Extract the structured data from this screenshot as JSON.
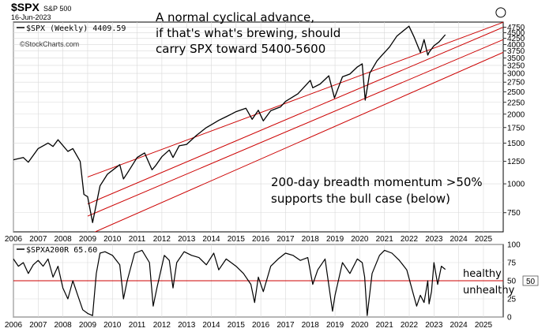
{
  "header": {
    "ticker": "$SPX",
    "name": "S&P 500",
    "date": "16-Jun-2023",
    "watermark": "©StockCharts.com"
  },
  "colors": {
    "price": "#000000",
    "channel": "#cc0000",
    "midline": "#cc0000",
    "grid": "#d9d9d9",
    "frame": "#000000"
  },
  "chart_data": [
    {
      "type": "line",
      "legend": "$SPX (Weekly) 4409.59",
      "y_scale": "log",
      "ylim": [
        620,
        5000
      ],
      "xlim": [
        2006.0,
        2025.8
      ],
      "x_ticks": [
        "2006",
        "2007",
        "2008",
        "2009",
        "2010",
        "2011",
        "2012",
        "2013",
        "2014",
        "2015",
        "2016",
        "2017",
        "2018",
        "2019",
        "2020",
        "2021",
        "2022",
        "2023",
        "2024",
        "2025"
      ],
      "y_ticks": [
        "4750",
        "4500",
        "4250",
        "4000",
        "3750",
        "3500",
        "3250",
        "3000",
        "2750",
        "2500",
        "2250",
        "2000",
        "1750",
        "1500",
        "1250",
        "1000",
        "750"
      ],
      "annotations": [
        "A normal cyclical advance,",
        "if that's what's brewing, should",
        "carry SPX toward 5400-5600",
        "200-day breadth momentum >50%",
        "supports the bull case (below)"
      ],
      "series": [
        {
          "x": [
            2006.0,
            2006.4,
            2006.6,
            2007.0,
            2007.4,
            2007.6,
            2007.8,
            2008.2,
            2008.4,
            2008.7,
            2008.85,
            2009.0,
            2009.2,
            2009.5,
            2009.8,
            2010.3,
            2010.45,
            2010.6,
            2011.0,
            2011.3,
            2011.6,
            2011.75,
            2012.0,
            2012.3,
            2012.45,
            2012.7,
            2013.0,
            2013.4,
            2013.8,
            2014.0,
            2014.3,
            2014.6,
            2014.8,
            2015.0,
            2015.4,
            2015.65,
            2015.9,
            2016.1,
            2016.4,
            2016.8,
            2017.0,
            2017.5,
            2018.0,
            2018.1,
            2018.4,
            2018.75,
            2018.98,
            2019.3,
            2019.6,
            2019.9,
            2020.1,
            2020.22,
            2020.4,
            2020.7,
            2020.9,
            2021.2,
            2021.5,
            2021.99,
            2022.2,
            2022.45,
            2022.6,
            2022.75,
            2022.8,
            2023.0,
            2023.2,
            2023.46
          ],
          "y": [
            1270,
            1300,
            1240,
            1420,
            1500,
            1450,
            1550,
            1380,
            1420,
            1250,
            900,
            880,
            680,
            980,
            1100,
            1210,
            1050,
            1110,
            1300,
            1360,
            1150,
            1200,
            1310,
            1400,
            1300,
            1460,
            1480,
            1620,
            1750,
            1800,
            1880,
            1950,
            2000,
            2050,
            2120,
            1900,
            2080,
            1870,
            2070,
            2150,
            2270,
            2450,
            2800,
            2600,
            2700,
            2930,
            2350,
            2900,
            2980,
            3200,
            3300,
            2300,
            3000,
            3400,
            3600,
            3900,
            4350,
            4800,
            4300,
            3700,
            4200,
            3600,
            3700,
            3950,
            4100,
            4410
          ]
        }
      ],
      "channel_lines": [
        {
          "x": [
            2009.0,
            2025.8
          ],
          "y": [
            1070,
            4990
          ]
        },
        {
          "x": [
            2009.0,
            2025.8
          ],
          "y": [
            818,
            4750
          ]
        },
        {
          "x": [
            2009.0,
            2025.8
          ],
          "y": [
            725,
            4200
          ]
        },
        {
          "x": [
            2009.0,
            2025.8
          ],
          "y": [
            600,
            3700
          ]
        }
      ],
      "target": {
        "x": 2025.7,
        "y": 5500
      }
    },
    {
      "type": "line",
      "legend": "$SPXA200R 65.60",
      "ylim": [
        0,
        100
      ],
      "xlim": [
        2006.0,
        2025.8
      ],
      "x_ticks": [
        "2006",
        "2007",
        "2008",
        "2009",
        "2010",
        "2011",
        "2012",
        "2013",
        "2014",
        "2015",
        "2016",
        "2017",
        "2018",
        "2019",
        "2020",
        "2021",
        "2022",
        "2023",
        "2024",
        "2025"
      ],
      "y_ticks": [
        "100",
        "75",
        "50",
        "25",
        "0"
      ],
      "threshold": 50,
      "threshold_label": "50",
      "zone_labels": [
        "healthy",
        "unhealthy"
      ],
      "series": [
        {
          "x": [
            2006.0,
            2006.2,
            2006.4,
            2006.6,
            2006.8,
            2007.0,
            2007.2,
            2007.4,
            2007.6,
            2007.8,
            2008.0,
            2008.2,
            2008.4,
            2008.6,
            2008.8,
            2009.0,
            2009.2,
            2009.35,
            2009.5,
            2009.7,
            2010.0,
            2010.3,
            2010.45,
            2010.6,
            2010.9,
            2011.2,
            2011.5,
            2011.65,
            2011.8,
            2012.1,
            2012.3,
            2012.45,
            2012.6,
            2012.9,
            2013.2,
            2013.5,
            2013.8,
            2014.1,
            2014.3,
            2014.6,
            2014.8,
            2015.0,
            2015.3,
            2015.6,
            2015.75,
            2015.9,
            2016.1,
            2016.4,
            2016.7,
            2017.0,
            2017.3,
            2017.6,
            2017.9,
            2018.1,
            2018.3,
            2018.6,
            2018.9,
            2019.0,
            2019.3,
            2019.6,
            2019.9,
            2020.1,
            2020.2,
            2020.3,
            2020.5,
            2020.8,
            2021.0,
            2021.3,
            2021.6,
            2021.9,
            2022.1,
            2022.3,
            2022.45,
            2022.6,
            2022.75,
            2022.8,
            2022.9,
            2023.0,
            2023.15,
            2023.3,
            2023.46
          ],
          "y": [
            80,
            70,
            75,
            60,
            72,
            78,
            70,
            80,
            55,
            70,
            40,
            25,
            50,
            30,
            10,
            5,
            2,
            60,
            88,
            90,
            85,
            72,
            25,
            50,
            88,
            92,
            75,
            15,
            40,
            85,
            78,
            40,
            75,
            90,
            85,
            82,
            72,
            88,
            65,
            80,
            75,
            70,
            60,
            45,
            20,
            55,
            35,
            70,
            80,
            88,
            85,
            78,
            82,
            45,
            65,
            80,
            8,
            30,
            75,
            60,
            80,
            75,
            55,
            2,
            60,
            85,
            92,
            88,
            78,
            65,
            40,
            15,
            30,
            20,
            50,
            18,
            35,
            75,
            45,
            70,
            65.6
          ]
        }
      ]
    }
  ]
}
